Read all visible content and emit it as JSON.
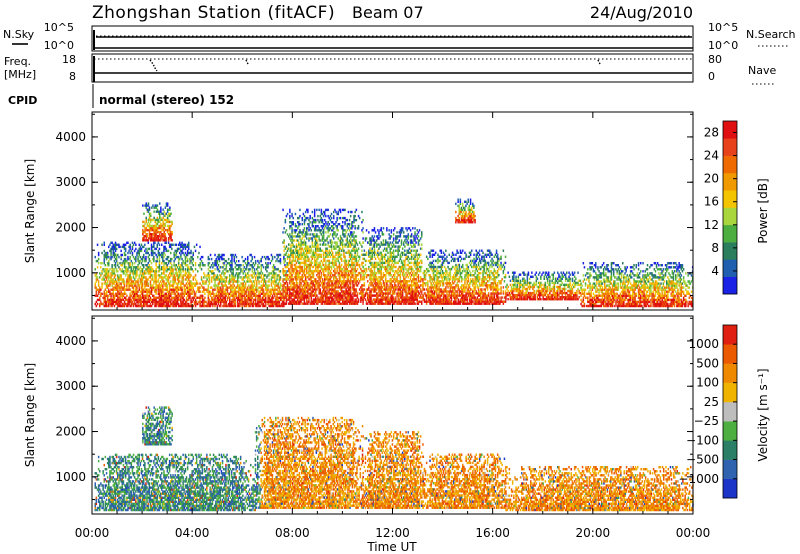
{
  "header": {
    "station": "Zhongshan Station (fitACF)",
    "beam": "Beam 07",
    "date": "24/Aug/2010"
  },
  "top_panel": {
    "left_label": "N.Sky",
    "left_ticks": [
      "10^5",
      "10^0"
    ],
    "right_ticks": [
      "10^5",
      "10^0"
    ],
    "right_label": "N.Search"
  },
  "freq_panel": {
    "left_label_line1": "Freq.",
    "left_label_line2": "[MHz]",
    "left_ticks": [
      "18",
      "8"
    ],
    "right_ticks": [
      "80",
      "0"
    ],
    "right_label": "Nave"
  },
  "cpid": {
    "label": "CPID",
    "value": "normal (stereo) 152"
  },
  "chart_data": [
    {
      "type": "heatmap",
      "title": "",
      "xlabel": "Time UT",
      "ylabel": "Slant Range [km]",
      "x_ticks": [
        "00:00",
        "04:00",
        "08:00",
        "12:00",
        "16:00",
        "20:00",
        "00:00"
      ],
      "x_range_hours": [
        0,
        24
      ],
      "y_ticks": [
        "1000",
        "2000",
        "3000",
        "4000"
      ],
      "y_range_km": [
        180,
        4550
      ],
      "colorbar": {
        "label": "Power [dB]",
        "ticks": [
          "4",
          "8",
          "12",
          "16",
          "20",
          "24",
          "28"
        ],
        "range": [
          0,
          30
        ],
        "colors": [
          "#1a22e6",
          "#205fb0",
          "#2a7d5d",
          "#4cae3e",
          "#a8d63c",
          "#f5c400",
          "#f09a00",
          "#ef6a00",
          "#e8421a",
          "#e01010"
        ]
      },
      "echo_regions": [
        {
          "t0": 0.1,
          "t1": 4.3,
          "r0": 250,
          "r1": 1650
        },
        {
          "t0": 2.0,
          "t1": 3.2,
          "r0": 1700,
          "r1": 2550
        },
        {
          "t0": 4.3,
          "t1": 7.8,
          "r0": 250,
          "r1": 1400
        },
        {
          "t0": 7.6,
          "t1": 10.8,
          "r0": 300,
          "r1": 2400
        },
        {
          "t0": 10.8,
          "t1": 13.2,
          "r0": 300,
          "r1": 2000
        },
        {
          "t0": 13.2,
          "t1": 16.5,
          "r0": 300,
          "r1": 1500
        },
        {
          "t0": 14.5,
          "t1": 15.3,
          "r0": 2100,
          "r1": 2600
        },
        {
          "t0": 16.5,
          "t1": 19.5,
          "r0": 400,
          "r1": 1000
        },
        {
          "t0": 19.5,
          "t1": 24.0,
          "r0": 250,
          "r1": 1200
        }
      ]
    },
    {
      "type": "heatmap",
      "title": "",
      "xlabel": "Time UT",
      "ylabel": "Slant Range [km]",
      "x_ticks": [
        "00:00",
        "04:00",
        "08:00",
        "12:00",
        "16:00",
        "20:00",
        "00:00"
      ],
      "x_range_hours": [
        0,
        24
      ],
      "y_ticks": [
        "1000",
        "2000",
        "3000",
        "4000"
      ],
      "y_range_km": [
        180,
        4550
      ],
      "colorbar": {
        "label": "Velocity [m s⁻¹]",
        "ticks": [
          "1000",
          "500",
          "100",
          "25",
          "−25",
          "−100",
          "−500",
          "−1000"
        ],
        "colors": [
          "#1a35c8",
          "#2f63b0",
          "#2b7f66",
          "#4daf3f",
          "#bdbdbd",
          "#f0b400",
          "#ef8a00",
          "#ec5a00",
          "#e02010"
        ]
      },
      "echo_regions": [
        {
          "t0": 0.1,
          "t1": 6.5,
          "r0": 250,
          "r1": 1500
        },
        {
          "t0": 2.0,
          "t1": 3.2,
          "r0": 1700,
          "r1": 2550
        },
        {
          "t0": 6.5,
          "t1": 10.8,
          "r0": 300,
          "r1": 2300
        },
        {
          "t0": 10.8,
          "t1": 13.2,
          "r0": 300,
          "r1": 2000
        },
        {
          "t0": 13.2,
          "t1": 16.5,
          "r0": 300,
          "r1": 1500
        },
        {
          "t0": 16.5,
          "t1": 24.0,
          "r0": 250,
          "r1": 1200
        }
      ]
    }
  ]
}
